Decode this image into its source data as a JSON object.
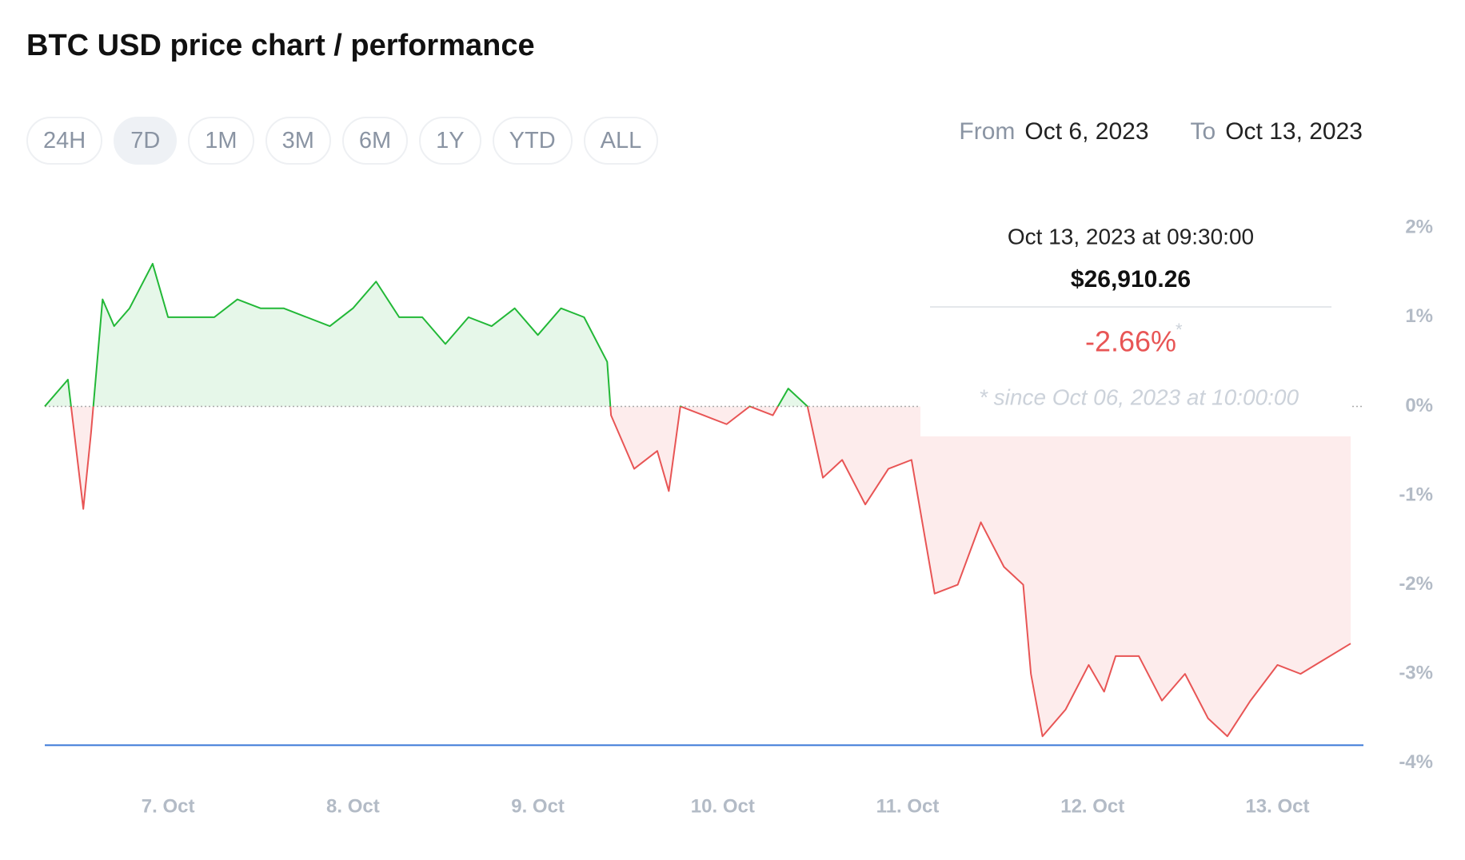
{
  "header": {
    "title": "BTC USD price chart / performance",
    "range_buttons": [
      "24H",
      "7D",
      "1M",
      "3M",
      "6M",
      "1Y",
      "YTD",
      "ALL"
    ],
    "active_range": "7D",
    "from_label": "From",
    "from": "Oct 6, 2023",
    "to_label": "To",
    "to": "Oct 13, 2023"
  },
  "tooltip": {
    "date": "Oct 13, 2023 at 09:30:00",
    "price": "$26,910.26",
    "change": "-2.66%",
    "asterisk": "*",
    "note": "* since Oct 06, 2023 at 10:00:00"
  },
  "chart_data": {
    "type": "line",
    "x": [
      "2023-10-06T08:00",
      "2023-10-06T11:00",
      "2023-10-06T13:00",
      "2023-10-06T14:00",
      "2023-10-06T15:30",
      "2023-10-06T17:00",
      "2023-10-06T19:00",
      "2023-10-06T22:00",
      "2023-10-07T00:00",
      "2023-10-07T03:00",
      "2023-10-07T06:00",
      "2023-10-07T09:00",
      "2023-10-07T12:00",
      "2023-10-07T15:00",
      "2023-10-07T18:00",
      "2023-10-07T21:00",
      "2023-10-08T00:00",
      "2023-10-08T03:00",
      "2023-10-08T06:00",
      "2023-10-08T09:00",
      "2023-10-08T12:00",
      "2023-10-08T15:00",
      "2023-10-08T18:00",
      "2023-10-08T21:00",
      "2023-10-09T00:00",
      "2023-10-09T03:00",
      "2023-10-09T06:00",
      "2023-10-09T09:00",
      "2023-10-09T09:30",
      "2023-10-09T12:30",
      "2023-10-09T15:30",
      "2023-10-09T17:00",
      "2023-10-09T18:30",
      "2023-10-09T21:30",
      "2023-10-10T00:30",
      "2023-10-10T03:30",
      "2023-10-10T06:30",
      "2023-10-10T08:30",
      "2023-10-10T11:00",
      "2023-10-10T13:00",
      "2023-10-10T15:30",
      "2023-10-10T18:30",
      "2023-10-10T21:30",
      "2023-10-11T00:30",
      "2023-10-11T02:30",
      "2023-10-11T03:30",
      "2023-10-11T06:30",
      "2023-10-11T09:30",
      "2023-10-11T12:30",
      "2023-10-11T15:00",
      "2023-10-11T16:00",
      "2023-10-11T17:30",
      "2023-10-11T20:30",
      "2023-10-11T23:30",
      "2023-10-12T01:30",
      "2023-10-12T03:00",
      "2023-10-12T06:00",
      "2023-10-12T09:00",
      "2023-10-12T12:00",
      "2023-10-12T15:00",
      "2023-10-12T17:30",
      "2023-10-12T20:30",
      "2023-10-13T00:00",
      "2023-10-13T03:00",
      "2023-10-13T09:30"
    ],
    "values": [
      0.0,
      0.3,
      -1.15,
      -0.3,
      1.2,
      0.9,
      1.1,
      1.6,
      1.0,
      1.0,
      1.0,
      1.2,
      1.1,
      1.1,
      1.0,
      0.9,
      1.1,
      1.4,
      1.0,
      1.0,
      0.7,
      1.0,
      0.9,
      1.1,
      0.8,
      1.1,
      1.0,
      0.5,
      -0.1,
      -0.7,
      -0.5,
      -0.95,
      0.0,
      -0.1,
      -0.2,
      0.0,
      -0.1,
      0.2,
      0.0,
      -0.8,
      -0.6,
      -1.1,
      -0.7,
      -0.6,
      -1.6,
      -2.1,
      -2.0,
      -1.3,
      -1.8,
      -2.0,
      -3.0,
      -3.7,
      -3.4,
      -2.9,
      -3.2,
      -2.8,
      -2.8,
      -3.3,
      -3.0,
      -3.5,
      -3.7,
      -3.3,
      -2.9,
      -3.0,
      -2.66
    ],
    "up_color": "#22b837",
    "down_color": "#e85555",
    "min_line": -3.8,
    "min_line_color": "#3a78d8",
    "xlim": [
      "2023-10-06T08:00",
      "2023-10-13T09:30"
    ],
    "xticks": [
      {
        "value": "2023-10-07T00:00",
        "label": "7. Oct"
      },
      {
        "value": "2023-10-08T00:00",
        "label": "8. Oct"
      },
      {
        "value": "2023-10-09T00:00",
        "label": "9. Oct"
      },
      {
        "value": "2023-10-10T00:00",
        "label": "10. Oct"
      },
      {
        "value": "2023-10-11T00:00",
        "label": "11. Oct"
      },
      {
        "value": "2023-10-12T00:00",
        "label": "12. Oct"
      },
      {
        "value": "2023-10-13T00:00",
        "label": "13. Oct"
      }
    ],
    "ylim": [
      -4.2,
      2.2
    ],
    "yticks": [
      {
        "value": 2,
        "label": "2%"
      },
      {
        "value": 1,
        "label": "1%"
      },
      {
        "value": 0,
        "label": "0%"
      },
      {
        "value": -1,
        "label": "-1%"
      },
      {
        "value": -2,
        "label": "-2%"
      },
      {
        "value": -3,
        "label": "-3%"
      },
      {
        "value": -4,
        "label": "-4%"
      }
    ]
  }
}
